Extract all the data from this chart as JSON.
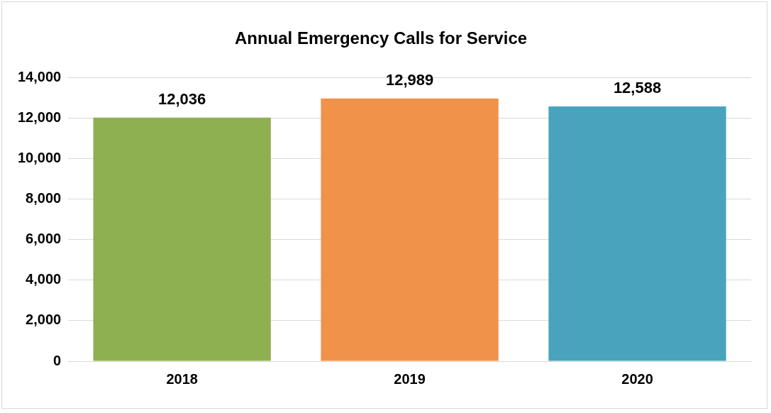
{
  "chart_data": {
    "type": "bar",
    "title": "Annual Emergency Calls for Service",
    "categories": [
      "2018",
      "2019",
      "2020"
    ],
    "values": [
      12036,
      12989,
      12588
    ],
    "value_labels": [
      "12,036",
      "12,989",
      "12,588"
    ],
    "colors": [
      "#8fb050",
      "#f0924a",
      "#4aa3bd"
    ],
    "ylim": [
      0,
      14000
    ],
    "yticks": [
      0,
      {
        "value": 2000,
        "label": "2,000"
      },
      {
        "value": 4000,
        "label": "4,000"
      },
      {
        "value": 6000,
        "label": "6,000"
      },
      {
        "value": 8000,
        "label": "8,000"
      },
      {
        "value": 10000,
        "label": "10,000"
      },
      {
        "value": 12000,
        "label": "12,000"
      },
      {
        "value": 14000,
        "label": "14,000"
      }
    ],
    "grid": "y",
    "legend": false
  }
}
